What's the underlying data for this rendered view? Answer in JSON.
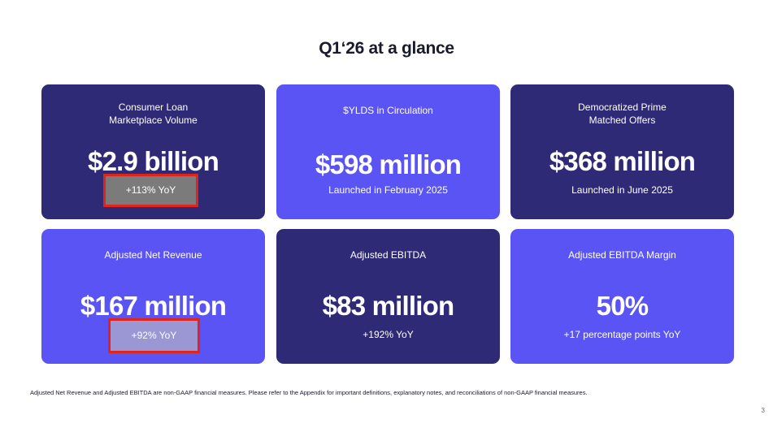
{
  "title": "Q1‘26 at a glance",
  "cards": [
    {
      "label": "Consumer Loan\nMarketplace Volume",
      "value": "$2.9 billion",
      "sub": "+113% YoY",
      "theme": "#2e2a76"
    },
    {
      "label": "$YLDS in Circulation",
      "value": "$598 million",
      "sub": "Launched in February 2025",
      "theme": "#5b54f4"
    },
    {
      "label": "Democratized Prime\nMatched Offers",
      "value": "$368 million",
      "sub": "Launched in June 2025",
      "theme": "#2e2a76"
    },
    {
      "label": "Adjusted Net Revenue",
      "value": "$167 million",
      "sub": "+92% YoY",
      "theme": "#5b54f4"
    },
    {
      "label": "Adjusted EBITDA",
      "value": "$83 million",
      "sub": "+192% YoY",
      "theme": "#2e2a76"
    },
    {
      "label": "Adjusted EBITDA Margin",
      "value": "50%",
      "sub": "+17 percentage points YoY",
      "theme": "#5b54f4"
    }
  ],
  "highlight_color": "#e0231b",
  "footnote": "Adjusted Net Revenue and Adjusted EBITDA are non-GAAP financial measures. Please refer to the Appendix for important definitions, explanatory notes, and reconciliations of non-GAAP financial measures.",
  "page_number": "3"
}
